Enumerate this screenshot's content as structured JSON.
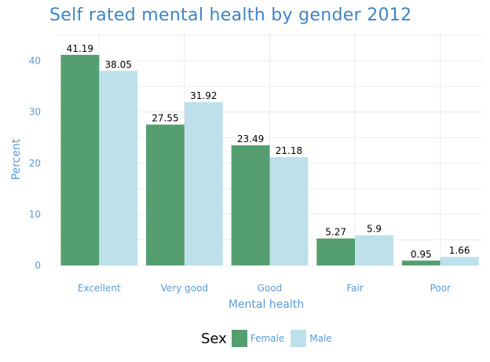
{
  "chart_data": {
    "type": "bar",
    "title": "Self rated mental health by gender 2012",
    "xlabel": "Mental health",
    "ylabel": "Percent",
    "categories": [
      "Excellent",
      "Very good",
      "Good",
      "Fair",
      "Poor"
    ],
    "series": [
      {
        "name": "Female",
        "values": [
          41.19,
          27.55,
          23.49,
          5.27,
          0.95
        ],
        "color": "#559e70"
      },
      {
        "name": "Male",
        "values": [
          38.05,
          31.92,
          21.18,
          5.9,
          1.66
        ],
        "color": "#bde0ea"
      }
    ],
    "ylim": [
      0,
      45
    ],
    "yticks": [
      0,
      10,
      20,
      30,
      40
    ],
    "grid": true,
    "legend": {
      "title": "Sex",
      "placement": "bottom"
    }
  }
}
